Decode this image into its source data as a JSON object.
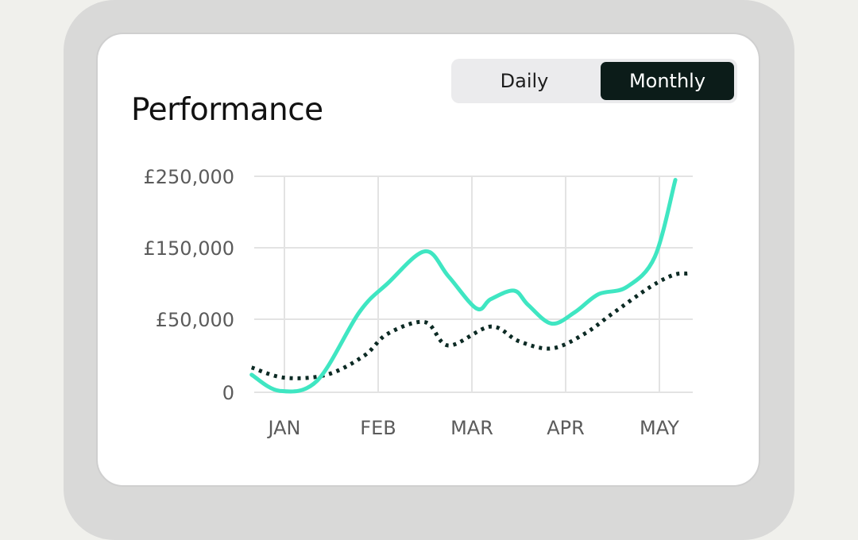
{
  "header": {
    "title": "Performance"
  },
  "toggle": {
    "daily_label": "Daily",
    "monthly_label": "Monthly",
    "selected": "Monthly"
  },
  "colors": {
    "primary_series": "#3fe6c2",
    "secondary_series": "#0c2a24",
    "toggle_active": "#0c1c19"
  },
  "chart_data": {
    "type": "line",
    "x": [
      "JAN",
      "FEB",
      "MAR",
      "APR",
      "MAY"
    ],
    "xlim": [
      "JAN",
      "MAY"
    ],
    "ylim": [
      0,
      250000
    ],
    "yticks": [
      0,
      50000,
      150000,
      250000
    ],
    "ytick_labels": [
      "0",
      "£50,000",
      "£150,000",
      "£250,000"
    ],
    "xtick_labels": [
      "JAN",
      "FEB",
      "MAR",
      "APR",
      "MAY"
    ],
    "grid": true,
    "legend": "none",
    "series": [
      {
        "style": "solid",
        "points": [
          [
            -0.35,
            12000
          ],
          [
            -0.05,
            1000
          ],
          [
            0.35,
            8000
          ],
          [
            0.8,
            60000
          ],
          [
            1.1,
            100000
          ],
          [
            1.5,
            145000
          ],
          [
            1.75,
            110000
          ],
          [
            2.05,
            65000
          ],
          [
            2.2,
            78000
          ],
          [
            2.45,
            90000
          ],
          [
            2.6,
            70000
          ],
          [
            2.85,
            47000
          ],
          [
            3.1,
            60000
          ],
          [
            3.35,
            85000
          ],
          [
            3.65,
            95000
          ],
          [
            3.95,
            137000
          ],
          [
            4.17,
            245000
          ]
        ]
      },
      {
        "style": "dotted",
        "points": [
          [
            -0.35,
            17000
          ],
          [
            0,
            10000
          ],
          [
            0.45,
            12000
          ],
          [
            0.85,
            25000
          ],
          [
            1.1,
            40000
          ],
          [
            1.5,
            48000
          ],
          [
            1.75,
            32000
          ],
          [
            2.2,
            45000
          ],
          [
            2.5,
            35000
          ],
          [
            2.85,
            30000
          ],
          [
            3.2,
            40000
          ],
          [
            3.5,
            58000
          ],
          [
            3.9,
            95000
          ],
          [
            4.15,
            112000
          ],
          [
            4.3,
            114000
          ]
        ]
      }
    ]
  }
}
